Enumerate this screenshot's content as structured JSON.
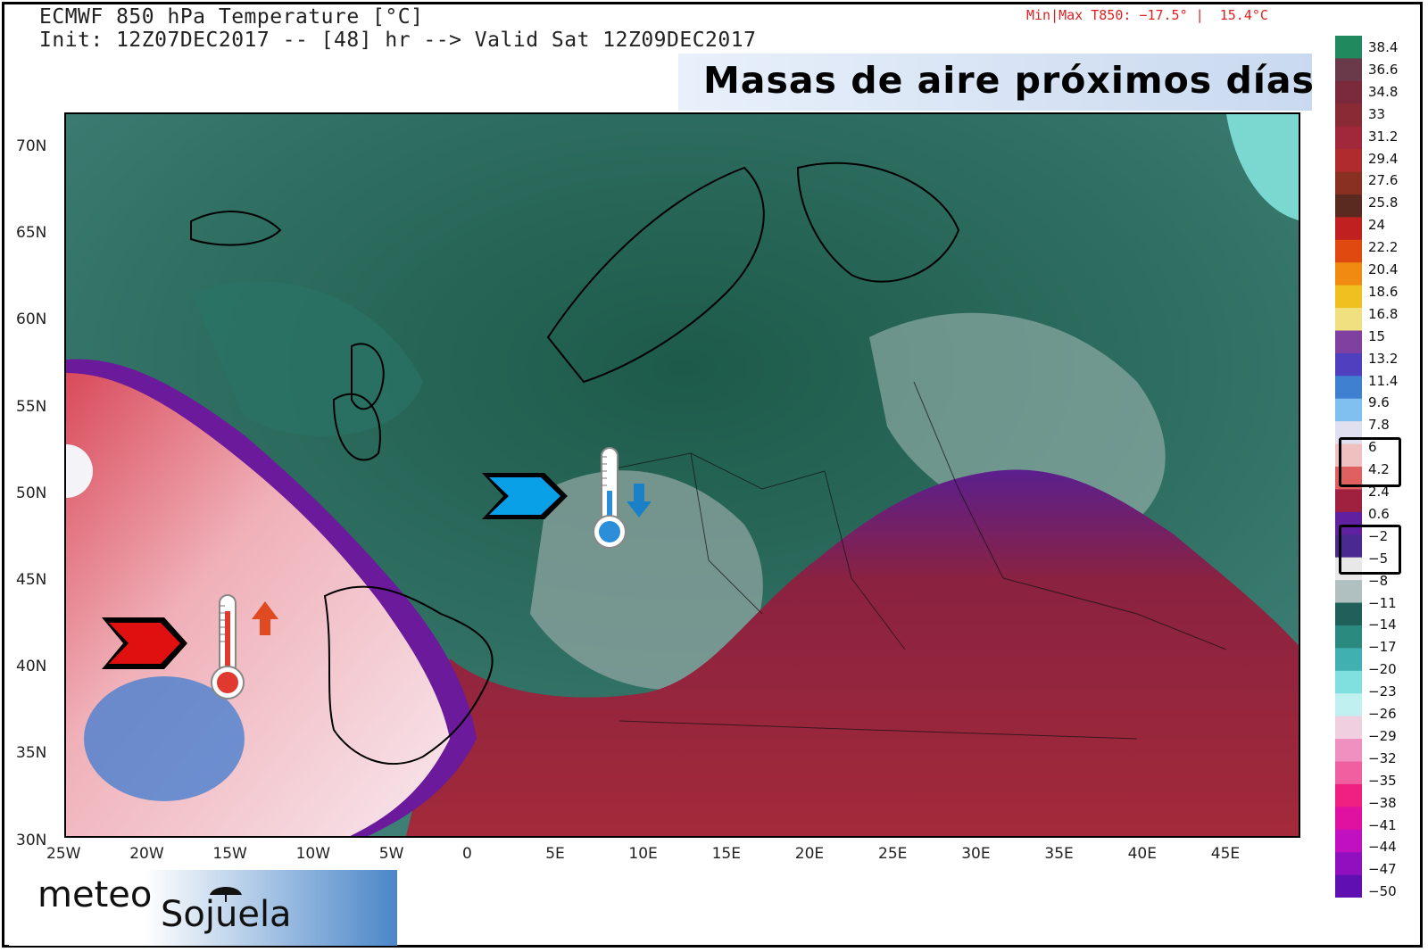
{
  "header": {
    "title_line1": "ECMWF 850 hPa Temperature [°C]",
    "title_line2": "Init: 12Z07DEC2017 -- [48] hr --> Valid Sat 12Z09DEC2017",
    "minmax": "Min|Max T850: −17.5° |  15.4°C"
  },
  "banner": {
    "text": "Masas de aire próximos días"
  },
  "axes": {
    "lat_labels": [
      "70N",
      "65N",
      "60N",
      "55N",
      "50N",
      "45N",
      "40N",
      "35N",
      "30N"
    ],
    "lon_labels": [
      "25W",
      "20W",
      "15W",
      "10W",
      "5W",
      "0",
      "5E",
      "10E",
      "15E",
      "20E",
      "25E",
      "30E",
      "35E",
      "40E",
      "45E"
    ]
  },
  "legend": {
    "labels": [
      "38.4",
      "36.6",
      "34.8",
      "33",
      "31.2",
      "29.4",
      "27.6",
      "25.8",
      "24",
      "22.2",
      "20.4",
      "18.6",
      "16.8",
      "15",
      "13.2",
      "11.4",
      "9.6",
      "7.8",
      "6",
      "4.2",
      "2.4",
      "0.6",
      "−2",
      "−5",
      "−8",
      "−11",
      "−14",
      "−17",
      "−20",
      "−23",
      "−26",
      "−29",
      "−32",
      "−35",
      "−38",
      "−41",
      "−44",
      "−47",
      "−50"
    ],
    "colors": [
      "#1e8a5e",
      "#6a3a4a",
      "#7a2a3a",
      "#8a2a35",
      "#a0283a",
      "#b02c2c",
      "#8a3020",
      "#5a2a20",
      "#c02020",
      "#e04a10",
      "#f08a10",
      "#f0c020",
      "#f0e080",
      "#8040a0",
      "#5040c0",
      "#4080d0",
      "#80c0f0",
      "#e0e0f0",
      "#f0c0c0",
      "#e06060",
      "#a02040",
      "#6020a0",
      "#4a2a90",
      "#e8e8e8",
      "#b0c0c0",
      "#20605a",
      "#2a8a80",
      "#40b0b0",
      "#80e0e0",
      "#c0f0f0",
      "#f0d0e0",
      "#f090c0",
      "#f060a0",
      "#f02080",
      "#e010a0",
      "#c010c0",
      "#9010c0",
      "#6010b0"
    ],
    "highlight_groups": [
      [
        "6",
        "4.2"
      ],
      [
        "−2",
        "−5"
      ]
    ]
  },
  "annotations": {
    "cold_arrow_color": "#0aa0e8",
    "warm_arrow_color": "#e01010",
    "icons": [
      "cold-arrow-icon",
      "thermometer-cold-icon",
      "down-arrow-icon",
      "warm-arrow-icon",
      "thermometer-warm-icon",
      "up-arrow-icon"
    ]
  },
  "logo": {
    "part1": "meteo",
    "part2": "Sojuela"
  }
}
